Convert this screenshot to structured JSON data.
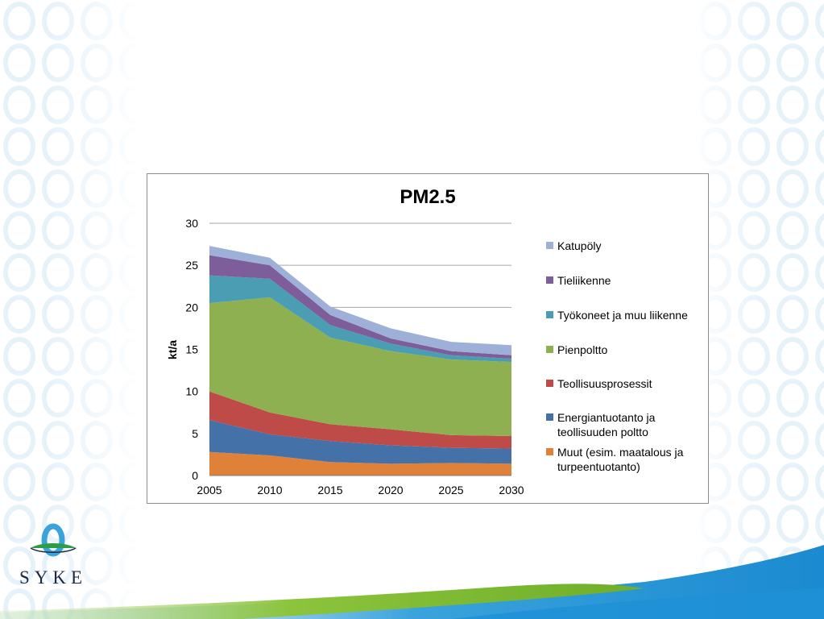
{
  "slide": {
    "logo_text": "SYKE",
    "colors": {
      "pattern": "#e6f2fa",
      "wave_blue": "#1f90d6",
      "wave_green": "#8cc43c",
      "logo_blue": "#3aa3dc",
      "logo_green": "#2e9b46"
    }
  },
  "chart_data": {
    "type": "area",
    "stacked": true,
    "title": "PM2.5",
    "xlabel": "",
    "ylabel": "kt/a",
    "x": [
      2005,
      2010,
      2015,
      2020,
      2025,
      2030
    ],
    "ylim": [
      0,
      30
    ],
    "yticks": [
      0,
      5,
      10,
      15,
      20,
      25,
      30
    ],
    "grid": true,
    "legend_position": "right",
    "series": [
      {
        "name": "Muut (esim. maatalous ja turpeentuotanto)",
        "color": "#e0813a",
        "values": [
          2.8,
          2.4,
          1.6,
          1.4,
          1.5,
          1.4
        ]
      },
      {
        "name": "Energiantuotanto ja teollisuuden poltto",
        "color": "#4472a8",
        "values": [
          3.8,
          2.5,
          2.5,
          2.2,
          1.8,
          1.8
        ]
      },
      {
        "name": "Teollisuusprosessit",
        "color": "#be4b48",
        "values": [
          3.4,
          2.6,
          2.0,
          1.9,
          1.5,
          1.5
        ]
      },
      {
        "name": "Pienpoltto",
        "color": "#8eb050",
        "values": [
          10.5,
          13.7,
          10.3,
          9.3,
          9.0,
          8.8
        ]
      },
      {
        "name": "Työkoneet ja muu liikenne",
        "color": "#4a9db2",
        "values": [
          3.3,
          2.2,
          1.5,
          0.9,
          0.5,
          0.4
        ]
      },
      {
        "name": "Tieliikenne",
        "color": "#7d5d9a",
        "values": [
          2.4,
          1.6,
          1.2,
          0.6,
          0.5,
          0.4
        ]
      },
      {
        "name": "Katupöly",
        "color": "#9fb0d8",
        "values": [
          1.1,
          0.9,
          1.0,
          1.2,
          1.1,
          1.2
        ]
      }
    ]
  }
}
